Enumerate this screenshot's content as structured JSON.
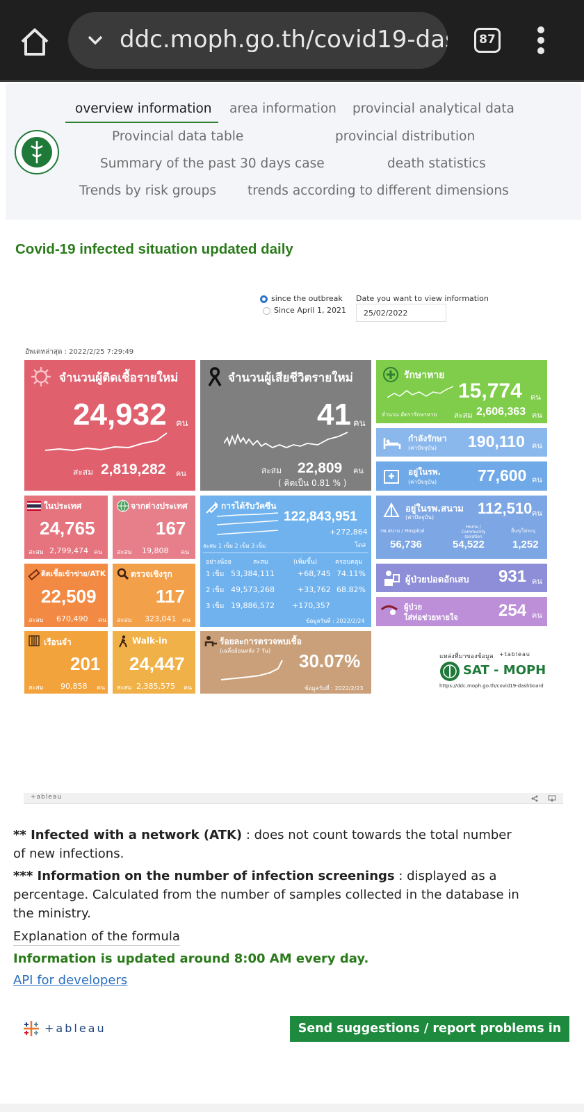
{
  "browser": {
    "url": "ddc.moph.go.th/covid19-das",
    "tab_count": "87"
  },
  "nav": {
    "items": [
      "overview information",
      "area information",
      "provincial analytical data",
      "Provincial data table",
      "provincial distribution",
      "Summary of the past 30 days case",
      "death statistics",
      "Trends by risk groups",
      "trends according to different dimensions"
    ]
  },
  "page_title": "Covid-19 infected situation updated daily",
  "controls": {
    "option_1": "since the outbreak",
    "option_2": "Since April 1, 2021",
    "date_label": "Date you want to view information",
    "date_value": "25/02/2022"
  },
  "dashboard": {
    "updated": "อัพเดทล่าสุด : 2022/2/25 7:29:49",
    "unit": "คน",
    "cum_label": "สะสม",
    "new_cases": {
      "label": "จำนวนผู้ติดเชื้อรายใหม่",
      "value": "24,932",
      "cumulative": "2,819,282"
    },
    "new_deaths": {
      "label": "จำนวนผู้เสียชีวิตรายใหม่",
      "value": "41",
      "cumulative": "22,809",
      "rate": "( คิดเป็น    0.81 % )"
    },
    "recovered": {
      "label": "รักษาหาย",
      "value": "15,774",
      "cumulative": "2,606,363",
      "legend": "จำนวน  อัตรารักษาหาย"
    },
    "treating": {
      "label": "กำลังรักษา",
      "sub": "(ค่าปัจจุบัน)",
      "value": "190,110"
    },
    "in_hospital": {
      "label": "อยู่ในรพ.",
      "sub": "(ค่าปัจจุบัน)",
      "value": "77,600"
    },
    "domestic": {
      "label": "ในประเทศ",
      "value": "24,765",
      "cumulative": "2,799,474"
    },
    "abroad": {
      "label": "จากต่างประเทศ",
      "value": "167",
      "cumulative": "19,808"
    },
    "vaccine": {
      "label": "การได้รับวัคซีน",
      "total": "122,843,951",
      "increase": "+272,864",
      "dose_unit": "โดส",
      "legend": "สะสม  1 เข็ม  2 เข็ม  3 เข็ม",
      "headers": [
        "อย่างน้อย",
        "สะสม",
        "(เพิ่มขึ้น)",
        "ครอบคลุม"
      ],
      "rows": [
        {
          "dose": "1 เข็ม",
          "cum": "53,384,111",
          "inc": "+68,745",
          "cov": "74.11%"
        },
        {
          "dose": "2 เข็ม",
          "cum": "49,573,268",
          "inc": "+33,762",
          "cov": "68.82%"
        },
        {
          "dose": "3 เข็ม",
          "cum": "19,886,572",
          "inc": "+170,357",
          "cov": ""
        }
      ],
      "date": "ข้อมูลวันที่ : 2022/2/24"
    },
    "field_hospital": {
      "label": "อยู่ในรพ.สนาม",
      "sub": "(ค่าปัจจุบัน)",
      "value": "112,510",
      "cols": [
        {
          "label": "รพ.สนาม / Hospital",
          "value": "56,736"
        },
        {
          "label": "Home / Community Isolation",
          "value": "54,522"
        },
        {
          "label": "อื่นๆ/ไม่ระบุ",
          "value": "1,252"
        }
      ]
    },
    "atk": {
      "label": "ติดเชื้อเข้าข่าย/ATK",
      "value": "22,509",
      "cumulative": "670,490"
    },
    "proactive": {
      "label": "ตรวจเชิงรุก",
      "value": "117",
      "cumulative": "323,041"
    },
    "pneumonia": {
      "label": "ผู้ป่วยปอดอักเสบ",
      "value": "931"
    },
    "ventilator": {
      "label": "ผู้ป่วย",
      "label2": "ใส่ท่อช่วยหายใจ",
      "value": "254"
    },
    "prison": {
      "label": "เรือนจำ",
      "value": "201",
      "cumulative": "90,858"
    },
    "walkin": {
      "label": "Walk-in",
      "value": "24,447",
      "cumulative": "2,385,575"
    },
    "positivity": {
      "label": "ร้อยละการตรวจพบเชื้อ",
      "sub": "(เฉลี่ยย้อนหลัง 7 วัน)",
      "value": "30.07%",
      "date": "ข้อมูลวันที่ : 2022/2/23"
    },
    "source": {
      "label": "แหล่งที่มาของข้อมูล",
      "tableau": "+tableau",
      "brand": "SAT - MOPH",
      "url": "https://ddc.moph.go.th/covid19-dashboard"
    }
  },
  "tableau_bar": "+ableau",
  "notes": {
    "n1_bold": "** Infected with a network (ATK)",
    "n1_rest": " : does not count towards the total number of new infections.",
    "n2_bold": "*** Information on the number of infection screenings",
    "n2_rest": " : displayed as a percentage. Calculated from the number of samples collected in the database in the ministry.",
    "explain": "Explanation of the formula",
    "updated": "Information is updated around 8:00 AM every day.",
    "api": "API for developers"
  },
  "footer": {
    "tableau": "+ableau",
    "button": "Send suggestions / report problems in use"
  }
}
